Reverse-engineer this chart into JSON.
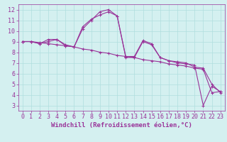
{
  "line_straight": {
    "x": [
      0,
      1,
      2,
      3,
      4,
      5,
      6,
      7,
      8,
      9,
      10,
      11,
      12,
      13,
      14,
      15,
      16,
      17,
      18,
      19,
      20,
      21,
      22,
      23
    ],
    "y": [
      9.0,
      9.0,
      8.9,
      8.8,
      8.7,
      8.6,
      8.5,
      8.3,
      8.2,
      8.0,
      7.9,
      7.7,
      7.6,
      7.5,
      7.3,
      7.2,
      7.1,
      6.9,
      6.8,
      6.7,
      6.5,
      6.4,
      4.2,
      4.3
    ]
  },
  "line_mid": {
    "x": [
      0,
      1,
      2,
      3,
      4,
      5,
      6,
      7,
      8,
      9,
      10,
      11,
      12,
      13,
      14,
      15,
      16,
      17,
      18,
      19,
      20,
      21,
      22,
      23
    ],
    "y": [
      9.0,
      9.0,
      8.8,
      9.2,
      9.2,
      8.7,
      8.5,
      10.4,
      11.1,
      11.5,
      11.8,
      11.4,
      7.6,
      7.6,
      9.1,
      8.8,
      7.5,
      7.2,
      7.1,
      7.0,
      6.6,
      6.5,
      5.0,
      4.2
    ]
  },
  "line_top": {
    "x": [
      0,
      1,
      2,
      3,
      4,
      5,
      6,
      7,
      8,
      9,
      10,
      11,
      12,
      13,
      14,
      15,
      16,
      17,
      18,
      19,
      20,
      21,
      22,
      23
    ],
    "y": [
      9.0,
      9.0,
      8.8,
      9.0,
      9.2,
      8.6,
      8.5,
      10.2,
      11.0,
      11.8,
      12.0,
      11.4,
      7.5,
      7.5,
      9.0,
      8.7,
      7.5,
      7.2,
      7.0,
      6.9,
      6.8,
      3.0,
      4.8,
      4.3
    ]
  },
  "line_color": "#993399",
  "marker": "+",
  "marker_size": 3.5,
  "marker_edge_width": 0.8,
  "line_width": 0.8,
  "bg_color": "#d4f0f0",
  "grid_color": "#b0dede",
  "xlabel": "Windchill (Refroidissement éolien,°C)",
  "xlim": [
    -0.5,
    23.5
  ],
  "ylim": [
    2.5,
    12.5
  ],
  "xticks": [
    0,
    1,
    2,
    3,
    4,
    5,
    6,
    7,
    8,
    9,
    10,
    11,
    12,
    13,
    14,
    15,
    16,
    17,
    18,
    19,
    20,
    21,
    22,
    23
  ],
  "yticks": [
    3,
    4,
    5,
    6,
    7,
    8,
    9,
    10,
    11,
    12
  ],
  "tick_fontsize": 6,
  "xlabel_fontsize": 6.5,
  "axis_color": "#993399"
}
